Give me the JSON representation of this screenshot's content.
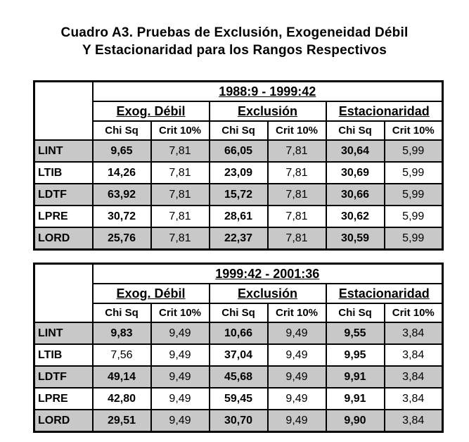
{
  "title": {
    "line1": "Cuadro A3. Pruebas de Exclusión, Exogeneidad Débil",
    "line2": "Y Estacionaridad para los Rangos Respectivos"
  },
  "colors": {
    "shade": "#c8c8c8",
    "border": "#000000"
  },
  "tables": [
    {
      "period": "1988:9 - 1999:42",
      "groups": [
        "Exog. Débil",
        "Exclusión",
        "Estacionaridad"
      ],
      "subheaders": [
        "Chi Sq",
        "Crit 10%",
        "Chi Sq",
        "Crit 10%",
        "Chi Sq",
        "Crit 10%"
      ],
      "rows": [
        {
          "label": "LINT",
          "values": [
            "9,65",
            "7,81",
            "66,05",
            "7,81",
            "30,64",
            "5,99"
          ]
        },
        {
          "label": "LTIB",
          "values": [
            "14,26",
            "7,81",
            "23,09",
            "7,81",
            "30,69",
            "5,99"
          ]
        },
        {
          "label": "LDTF",
          "values": [
            "63,92",
            "7,81",
            "15,72",
            "7,81",
            "30,66",
            "5,99"
          ]
        },
        {
          "label": "LPRE",
          "values": [
            "30,72",
            "7,81",
            "28,61",
            "7,81",
            "30,62",
            "5,99"
          ]
        },
        {
          "label": "LORD",
          "values": [
            "25,76",
            "7,81",
            "22,37",
            "7,81",
            "30,59",
            "5,99"
          ]
        }
      ]
    },
    {
      "period": "1999:42 - 2001:36",
      "groups": [
        "Exog. Débil",
        "Exclusión",
        "Estacionaridad"
      ],
      "subheaders": [
        "Chi Sq",
        "Crit 10%",
        "Chi Sq",
        "Crit 10%",
        "Chi Sq",
        "Crit 10%"
      ],
      "rows": [
        {
          "label": "LINT",
          "values": [
            "9,83",
            "9,49",
            "10,66",
            "9,49",
            "9,55",
            "3,84"
          ]
        },
        {
          "label": "LTIB",
          "values": [
            "7,56",
            "9,49",
            "37,04",
            "9,49",
            "9,95",
            "3,84"
          ]
        },
        {
          "label": "LDTF",
          "values": [
            "49,14",
            "9,49",
            "45,68",
            "9,49",
            "9,91",
            "3,84"
          ]
        },
        {
          "label": "LPRE",
          "values": [
            "42,80",
            "9,49",
            "59,45",
            "9,49",
            "9,91",
            "3,84"
          ]
        },
        {
          "label": "LORD",
          "values": [
            "29,51",
            "9,49",
            "30,70",
            "9,49",
            "9,90",
            "3,84"
          ]
        }
      ]
    }
  ]
}
